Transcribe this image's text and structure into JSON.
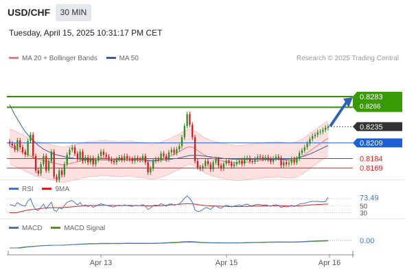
{
  "header": {
    "symbol": "USD/CHF",
    "timeframe": "30 MIN",
    "datetime": "Tuesday, April 15, 2025 10:31:17 PM CET"
  },
  "legend_main": [
    {
      "label": "MA 20 + Bollinger Bands",
      "color": "#f07878"
    },
    {
      "label": "MA 50",
      "color": "#2f5f9e"
    }
  ],
  "credit": "Research © 2025 Trading Central",
  "legend_rsi": [
    {
      "label": "RSI",
      "color": "#4a72c4"
    },
    {
      "label": "9MA",
      "color": "#d62020"
    }
  ],
  "legend_macd": [
    {
      "label": "MACD",
      "color": "#4a72c4"
    },
    {
      "label": "MACD Signal",
      "color": "#4a9a1a"
    }
  ],
  "colors": {
    "up": "#2e8a22",
    "down": "#c81e1e",
    "band_fill": "#fde0e0",
    "ma20": "#f07878",
    "ma50": "#2f5f9e",
    "resistance": "#3a8a00",
    "current_tag": "#333333",
    "level_blue": "#1f5fd6",
    "level_red": "#d62020",
    "arrow": "#2f62b5"
  },
  "chart_data": {
    "type": "candlestick",
    "symbol": "USD/CHF",
    "interval": "30 MIN",
    "y_axis_range": [
      0.8155,
      0.8295
    ],
    "x_ticks": [
      "Apr 13",
      "Apr 15",
      "Apr 16"
    ],
    "price_labels": {
      "resistance_1": "0.8283",
      "resistance_2": "0.8266",
      "current": "0.8235",
      "pivot": "0.8209",
      "support_1": "0.8184",
      "support_2": "0.8169"
    },
    "levels": {
      "resistance_1": 0.8283,
      "resistance_2": 0.8266,
      "current": 0.8235,
      "pivot": 0.8209,
      "support_1": 0.8184,
      "support_2": 0.8169
    },
    "close": [
      0.8208,
      0.8205,
      0.8198,
      0.8213,
      0.8202,
      0.8195,
      0.819,
      0.8212,
      0.8222,
      0.8188,
      0.8165,
      0.816,
      0.8175,
      0.8188,
      0.8165,
      0.818,
      0.8195,
      0.8155,
      0.815,
      0.8165,
      0.8158,
      0.8175,
      0.819,
      0.8198,
      0.8202,
      0.8192,
      0.8183,
      0.8195,
      0.818,
      0.8186,
      0.8178,
      0.8185,
      0.8175,
      0.8182,
      0.8188,
      0.8195,
      0.819,
      0.8187,
      0.8183,
      0.818,
      0.8178,
      0.8183,
      0.8186,
      0.8182,
      0.8188,
      0.8184,
      0.8183,
      0.818,
      0.8185,
      0.8183,
      0.8182,
      0.8188,
      0.8178,
      0.8162,
      0.8168,
      0.818,
      0.8183,
      0.8182,
      0.8192,
      0.8188,
      0.8183,
      0.8194,
      0.8198,
      0.8193,
      0.8199,
      0.8204,
      0.8218,
      0.8236,
      0.8255,
      0.8238,
      0.8218,
      0.818,
      0.817,
      0.8168,
      0.8172,
      0.818,
      0.8175,
      0.8167,
      0.8178,
      0.8183,
      0.8173,
      0.8168,
      0.8176,
      0.8181,
      0.8177,
      0.8172,
      0.8175,
      0.8178,
      0.8181,
      0.8176,
      0.8184,
      0.8185,
      0.818,
      0.8179,
      0.8183,
      0.8187,
      0.8186,
      0.8184,
      0.8186,
      0.8183,
      0.8179,
      0.8184,
      0.8187,
      0.8185,
      0.8173,
      0.8178,
      0.8175,
      0.8177,
      0.8183,
      0.8178,
      0.8184,
      0.8193,
      0.8197,
      0.8202,
      0.8208,
      0.8215,
      0.822,
      0.8222,
      0.8226,
      0.8227,
      0.823,
      0.8233,
      0.8235
    ],
    "ma20": [
      0.8203,
      0.8202,
      0.82,
      0.8198,
      0.8196,
      0.8194,
      0.8192,
      0.819,
      0.8188,
      0.8186,
      0.8184,
      0.8183,
      0.8182,
      0.8181,
      0.818,
      0.8179,
      0.8178,
      0.8177,
      0.8176,
      0.8175,
      0.8174,
      0.8174,
      0.8175,
      0.8176,
      0.8177,
      0.8178,
      0.8179,
      0.818,
      0.8181,
      0.8182,
      0.8183,
      0.8183,
      0.8183,
      0.8184,
      0.8184,
      0.8185,
      0.8185,
      0.8185,
      0.8184,
      0.8184,
      0.8184,
      0.8183,
      0.8183,
      0.8183,
      0.8184,
      0.8184,
      0.8184,
      0.8183,
      0.8183,
      0.8182,
      0.8182,
      0.8182,
      0.8181,
      0.818,
      0.8179,
      0.8179,
      0.818,
      0.8181,
      0.8182,
      0.8184,
      0.8185,
      0.8187,
      0.8189,
      0.8191,
      0.8193,
      0.8195,
      0.8198,
      0.82,
      0.8202,
      0.8203,
      0.8202,
      0.82,
      0.8197,
      0.8194,
      0.8191,
      0.8189,
      0.8187,
      0.8185,
      0.8184,
      0.8183,
      0.8182,
      0.8181,
      0.818,
      0.8179,
      0.8178,
      0.8178,
      0.8177,
      0.8177,
      0.8177,
      0.8177,
      0.8178,
      0.8178,
      0.8179,
      0.8179,
      0.818,
      0.818,
      0.8181,
      0.8181,
      0.8182,
      0.8182,
      0.8182,
      0.8182,
      0.8183,
      0.8183,
      0.8182,
      0.8182,
      0.8181,
      0.8181,
      0.8181,
      0.8182,
      0.8183,
      0.8185,
      0.8187,
      0.819,
      0.8193,
      0.8196,
      0.8199,
      0.8202,
      0.8205,
      0.8208,
      0.8211,
      0.8214,
      0.8216
    ],
    "ma50": [
      0.827,
      0.8262,
      0.8254,
      0.8247,
      0.824,
      0.8233,
      0.8227,
      0.8222,
      0.8217,
      0.8213,
      0.8209,
      0.8205,
      0.8202,
      0.8199,
      0.8197,
      0.8195,
      0.8193,
      0.8191,
      0.819,
      0.8189,
      0.8188,
      0.8187,
      0.8186,
      0.8185,
      0.8185,
      0.8184,
      0.8184,
      0.8183,
      0.8183,
      0.8183,
      0.8182,
      0.8182,
      0.8182,
      0.8182,
      0.8182,
      0.8182,
      0.8182,
      0.8182,
      0.8182,
      0.8182,
      0.8182,
      0.8182,
      0.8182,
      0.8182,
      0.8182,
      0.8182,
      0.8182,
      0.8182,
      0.8182,
      0.8182,
      0.8182,
      0.8182,
      0.8182,
      0.8181,
      0.8181,
      0.8181,
      0.8181,
      0.8181,
      0.8182,
      0.8182,
      0.8182,
      0.8183,
      0.8183,
      0.8184,
      0.8184,
      0.8185,
      0.8186,
      0.8187,
      0.8188,
      0.8189,
      0.8189,
      0.8189,
      0.8189,
      0.8189,
      0.8188,
      0.8188,
      0.8187,
      0.8187,
      0.8186,
      0.8186,
      0.8185,
      0.8185,
      0.8184,
      0.8184,
      0.8184,
      0.8183,
      0.8183,
      0.8183,
      0.8183,
      0.8183,
      0.8183,
      0.8183,
      0.8183,
      0.8183,
      0.8183,
      0.8183,
      0.8183,
      0.8183,
      0.8183,
      0.8183,
      0.8183,
      0.8183,
      0.8183,
      0.8183,
      0.8183,
      0.8183,
      0.8183,
      0.8183,
      0.8184,
      0.8184,
      0.8185,
      0.8186,
      0.8187,
      0.8188,
      0.819,
      0.8191,
      0.8193,
      0.8195,
      0.8197,
      0.8199,
      0.8201,
      0.8203,
      0.8205
    ],
    "bollinger_width": 0.0028,
    "projection_target": 0.8283,
    "rsi": {
      "label": "73.49",
      "last": 73.49,
      "ticks": [
        "50",
        "30"
      ]
    },
    "macd": {
      "label": "0.00",
      "last": 0.0
    }
  }
}
